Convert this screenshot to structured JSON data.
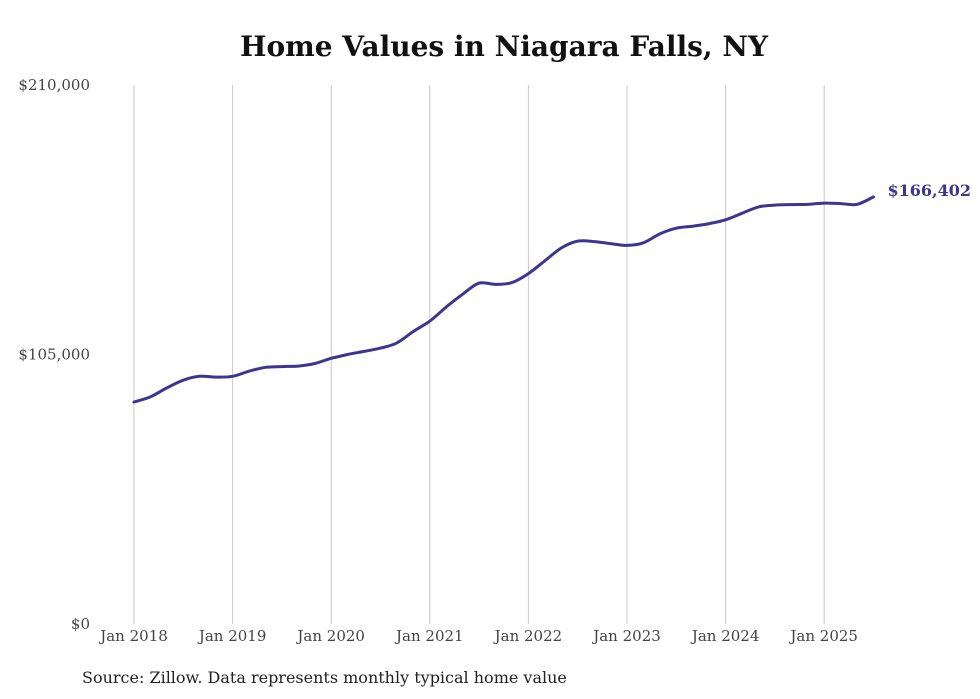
{
  "colors": {
    "line": "#3d3592",
    "grid": "#c8c8c8",
    "text": "#444444"
  },
  "chart_data": {
    "type": "line",
    "title": "Home Values in Niagara Falls, NY",
    "xlabel": "",
    "ylabel": "",
    "ylim": [
      0,
      210000
    ],
    "y_ticks": [
      {
        "value": 0,
        "label": "$0"
      },
      {
        "value": 105000,
        "label": "$105,000"
      },
      {
        "value": 210000,
        "label": "$210,000"
      }
    ],
    "x_ticks": [
      {
        "value": "2018-01",
        "label": "Jan 2018"
      },
      {
        "value": "2019-01",
        "label": "Jan 2019"
      },
      {
        "value": "2020-01",
        "label": "Jan 2020"
      },
      {
        "value": "2021-01",
        "label": "Jan 2021"
      },
      {
        "value": "2022-01",
        "label": "Jan 2022"
      },
      {
        "value": "2023-01",
        "label": "Jan 2023"
      },
      {
        "value": "2024-01",
        "label": "Jan 2024"
      },
      {
        "value": "2025-01",
        "label": "Jan 2025"
      }
    ],
    "grid": "vertical",
    "legend": "none",
    "end_label": "$166,402",
    "series": [
      {
        "x": [
          "2018-01",
          "2018-03",
          "2018-05",
          "2018-07",
          "2018-09",
          "2018-11",
          "2019-01",
          "2019-03",
          "2019-05",
          "2019-07",
          "2019-09",
          "2019-11",
          "2020-01",
          "2020-03",
          "2020-05",
          "2020-07",
          "2020-09",
          "2020-11",
          "2021-01",
          "2021-03",
          "2021-05",
          "2021-07",
          "2021-09",
          "2021-11",
          "2022-01",
          "2022-03",
          "2022-05",
          "2022-07",
          "2022-09",
          "2022-11",
          "2023-01",
          "2023-03",
          "2023-05",
          "2023-07",
          "2023-09",
          "2023-11",
          "2024-01",
          "2024-03",
          "2024-05",
          "2024-07",
          "2024-09",
          "2024-11",
          "2025-01",
          "2025-03",
          "2025-05",
          "2025-07"
        ],
        "values": [
          86500,
          88500,
          92000,
          95000,
          96500,
          96200,
          96500,
          98500,
          100000,
          100300,
          100500,
          101500,
          103500,
          105000,
          106200,
          107500,
          109500,
          114000,
          118000,
          123500,
          128500,
          132800,
          132300,
          133000,
          136500,
          141500,
          146500,
          149200,
          149000,
          148200,
          147500,
          148500,
          152000,
          154200,
          155000,
          156000,
          157500,
          160000,
          162500,
          163200,
          163400,
          163500,
          164000,
          163800,
          163500,
          166402
        ]
      }
    ]
  },
  "source_note": "Source: Zillow. Data represents monthly typical home value"
}
